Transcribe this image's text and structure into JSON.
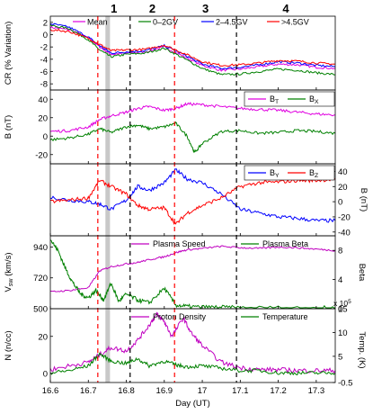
{
  "colors": {
    "mean": "#e000e0",
    "g0_2": "#008000",
    "g2_45": "#0000ff",
    "g45": "#ff0000",
    "BT": "#e000e0",
    "BX": "#008000",
    "BY": "#0000ff",
    "BZ": "#ff0000",
    "speed": "#c000c0",
    "beta": "#008000",
    "density": "#c000c0",
    "temp": "#008000",
    "red_dashed": "#ff0000",
    "black_dashed": "#000000",
    "shade": "#c8c8c8"
  },
  "chart_data": {
    "type": "line",
    "xlabel": "Day (UT)",
    "x_range": [
      16.6,
      17.35
    ],
    "x_ticks": [
      "16.6",
      "16.7",
      "16.8",
      "16.9",
      "17",
      "17.1",
      "17.2",
      "17.3"
    ],
    "phase_labels": [
      "1",
      "2",
      "3",
      "4"
    ],
    "red_dashed_lines": [
      16.725,
      16.927
    ],
    "black_dashed_lines": [
      16.81,
      17.09
    ],
    "shaded_interval": [
      16.745,
      16.757
    ],
    "panels": [
      {
        "id": "cr",
        "ylabel": "CR (% Variation)",
        "ylim": [
          -9,
          3
        ],
        "y_ticks_left": [
          "2",
          "0",
          "-2",
          "-4",
          "-6",
          "-8"
        ],
        "legend": [
          "Mean",
          "0–2GV",
          "2–4.5GV",
          ">4.5GV"
        ],
        "series": [
          {
            "name": "Mean",
            "color_key": "mean",
            "x": [
              16.6,
              16.65,
              16.7,
              16.73,
              16.76,
              16.8,
              16.85,
              16.9,
              16.95,
              17.0,
              17.05,
              17.1,
              17.15,
              17.2,
              17.25,
              17.3,
              17.35
            ],
            "y": [
              1.2,
              0.8,
              -0.5,
              -2.0,
              -3.2,
              -3.0,
              -2.8,
              -2.0,
              -3.5,
              -5.0,
              -5.8,
              -5.6,
              -5.2,
              -4.8,
              -4.9,
              -5.3,
              -5.5
            ]
          },
          {
            "name": "0–2GV",
            "color_key": "g0_2",
            "x": [
              16.6,
              16.65,
              16.7,
              16.73,
              16.76,
              16.8,
              16.85,
              16.9,
              16.95,
              17.0,
              17.05,
              17.1,
              17.15,
              17.2,
              17.25,
              17.3,
              17.35
            ],
            "y": [
              1.5,
              1.0,
              -0.8,
              -2.5,
              -3.6,
              -3.2,
              -3.0,
              -2.2,
              -3.8,
              -5.5,
              -6.5,
              -6.4,
              -6.0,
              -5.6,
              -5.8,
              -6.2,
              -6.5
            ]
          },
          {
            "name": "2–4.5GV",
            "color_key": "g2_45",
            "x": [
              16.6,
              16.65,
              16.7,
              16.73,
              16.76,
              16.8,
              16.85,
              16.9,
              16.95,
              17.0,
              17.05,
              17.1,
              17.15,
              17.2,
              17.25,
              17.3,
              17.35
            ],
            "y": [
              1.8,
              1.2,
              -0.4,
              -1.8,
              -3.0,
              -2.8,
              -2.6,
              -1.8,
              -3.2,
              -4.8,
              -5.5,
              -5.3,
              -4.9,
              -4.4,
              -4.6,
              -5.0,
              -5.2
            ]
          },
          {
            "name": ">4.5GV",
            "color_key": "g45",
            "x": [
              16.6,
              16.65,
              16.7,
              16.73,
              16.76,
              16.8,
              16.85,
              16.9,
              16.95,
              17.0,
              17.05,
              17.1,
              17.15,
              17.2,
              17.25,
              17.3,
              17.35
            ],
            "y": [
              0.8,
              0.5,
              -0.6,
              -1.6,
              -2.6,
              -2.5,
              -2.4,
              -1.7,
              -3.0,
              -4.4,
              -5.0,
              -4.9,
              -4.6,
              -4.2,
              -4.3,
              -4.6,
              -4.8
            ]
          }
        ]
      },
      {
        "id": "bt",
        "ylabel": "B (nT)",
        "ylim": [
          -30,
          50
        ],
        "y_ticks_left": [
          "40",
          "20",
          "0",
          "-20"
        ],
        "legend": [
          "B_T",
          "B_X"
        ],
        "series": [
          {
            "name": "B_T",
            "color_key": "BT",
            "x": [
              16.6,
              16.65,
              16.7,
              16.73,
              16.76,
              16.8,
              16.83,
              16.86,
              16.9,
              16.93,
              16.96,
              17.0,
              17.05,
              17.1,
              17.15,
              17.2,
              17.25,
              17.3,
              17.35
            ],
            "y": [
              5,
              6,
              10,
              18,
              22,
              26,
              30,
              32,
              28,
              30,
              35,
              34,
              32,
              30,
              29,
              28,
              26,
              24,
              23
            ]
          },
          {
            "name": "B_X",
            "color_key": "BX",
            "x": [
              16.6,
              16.65,
              16.7,
              16.73,
              16.76,
              16.8,
              16.83,
              16.86,
              16.9,
              16.93,
              16.96,
              16.98,
              17.0,
              17.05,
              17.1,
              17.15,
              17.2,
              17.25,
              17.3,
              17.35
            ],
            "y": [
              -4,
              -2,
              2,
              8,
              4,
              10,
              12,
              8,
              10,
              14,
              0,
              -18,
              -8,
              5,
              6,
              3,
              4,
              6,
              5,
              3
            ]
          }
        ]
      },
      {
        "id": "byz",
        "ylabel": "B (nT)",
        "ylim": [
          -45,
          50
        ],
        "y_ticks_right": [
          "40",
          "20",
          "0",
          "-20",
          "-40"
        ],
        "legend": [
          "B_Y",
          "B_Z"
        ],
        "series": [
          {
            "name": "B_Y",
            "color_key": "BY",
            "x": [
              16.6,
              16.65,
              16.7,
              16.73,
              16.76,
              16.8,
              16.83,
              16.86,
              16.9,
              16.93,
              16.96,
              17.0,
              17.05,
              17.1,
              17.15,
              17.2,
              17.25,
              17.3,
              17.35
            ],
            "y": [
              6,
              2,
              0,
              -3,
              -10,
              2,
              20,
              15,
              25,
              42,
              30,
              25,
              10,
              -10,
              -15,
              -20,
              -22,
              -25,
              -25
            ]
          },
          {
            "name": "B_Z",
            "color_key": "BZ",
            "x": [
              16.6,
              16.65,
              16.7,
              16.73,
              16.76,
              16.8,
              16.83,
              16.86,
              16.9,
              16.93,
              16.96,
              17.0,
              17.05,
              17.1,
              17.15,
              17.2,
              17.25,
              17.3,
              17.35
            ],
            "y": [
              0,
              2,
              5,
              28,
              20,
              10,
              -5,
              -10,
              -8,
              -30,
              -15,
              -5,
              5,
              20,
              25,
              26,
              28,
              28,
              30
            ]
          }
        ]
      },
      {
        "id": "speed_beta",
        "ylabel": "V_sw (km/s)",
        "ylabel_right": "Beta",
        "ylim": [
          500,
          1020
        ],
        "y_ticks_left": [
          "940",
          "720",
          "500"
        ],
        "y_ticks_right": [
          "8",
          "4",
          "0"
        ],
        "legend": [
          "Plasma Speed",
          "Plasma Beta"
        ],
        "series": [
          {
            "name": "Plasma Speed",
            "color_key": "speed",
            "x": [
              16.6,
              16.65,
              16.7,
              16.73,
              16.76,
              16.8,
              16.83,
              16.86,
              16.9,
              16.93,
              16.96,
              17.0,
              17.05,
              17.1,
              17.15,
              17.2,
              17.25,
              17.3,
              17.35
            ],
            "y": [
              620,
              630,
              650,
              770,
              800,
              820,
              830,
              850,
              870,
              900,
              920,
              930,
              945,
              935,
              930,
              940,
              935,
              925,
              915
            ]
          },
          {
            "name": "Plasma Beta",
            "color_key": "beta",
            "axis": "right",
            "ylim_right": [
              0,
              10
            ],
            "x": [
              16.6,
              16.62,
              16.64,
              16.66,
              16.68,
              16.7,
              16.72,
              16.74,
              16.76,
              16.78,
              16.8,
              16.83,
              16.86,
              16.9,
              16.93,
              16.96,
              17.0,
              17.05,
              17.1,
              17.2,
              17.3,
              17.35
            ],
            "y": [
              9.5,
              8.0,
              5.5,
              3.5,
              2.0,
              1.5,
              2.5,
              1.2,
              3.5,
              1.0,
              2.0,
              1.2,
              0.8,
              2.8,
              0.5,
              0.3,
              0.2,
              0.2,
              0.1,
              0.1,
              0.1,
              0.1
            ]
          }
        ]
      },
      {
        "id": "density_temp",
        "ylabel": "N (n/cc)",
        "ylabel_right": "Temp. (K)",
        "ylim": [
          -5,
          35
        ],
        "y_ticks_left": [
          "20",
          "0"
        ],
        "y_ticks_right": [
          "15",
          "10",
          "5",
          "-0.5"
        ],
        "right_exponent": "x 10^5",
        "legend": [
          "Proton Density",
          "Temperature"
        ],
        "series": [
          {
            "name": "Proton Density",
            "color_key": "density",
            "x": [
              16.6,
              16.65,
              16.7,
              16.73,
              16.76,
              16.8,
              16.83,
              16.86,
              16.88,
              16.9,
              16.92,
              16.95,
              16.97,
              17.0,
              17.05,
              17.1,
              17.15,
              17.2,
              17.25,
              17.3,
              17.35
            ],
            "y": [
              2,
              4,
              6,
              10,
              14,
              12,
              18,
              26,
              32,
              28,
              20,
              30,
              22,
              15,
              6,
              3,
              2,
              2,
              1.5,
              1.5,
              1.5
            ]
          },
          {
            "name": "Temperature",
            "color_key": "temp",
            "axis": "right",
            "ylim_right": [
              -0.5,
              15
            ],
            "x": [
              16.6,
              16.65,
              16.7,
              16.73,
              16.76,
              16.8,
              16.83,
              16.86,
              16.9,
              16.93,
              16.96,
              17.0,
              17.05,
              17.1,
              17.15,
              17.2,
              17.25,
              17.3,
              17.35
            ],
            "y": [
              1.5,
              2.0,
              3.0,
              5.5,
              4.0,
              3.5,
              4.5,
              3.0,
              4.0,
              3.2,
              2.8,
              3.0,
              2.5,
              2.0,
              2.0,
              1.5,
              1.5,
              1.5,
              1.5
            ]
          }
        ]
      }
    ]
  }
}
